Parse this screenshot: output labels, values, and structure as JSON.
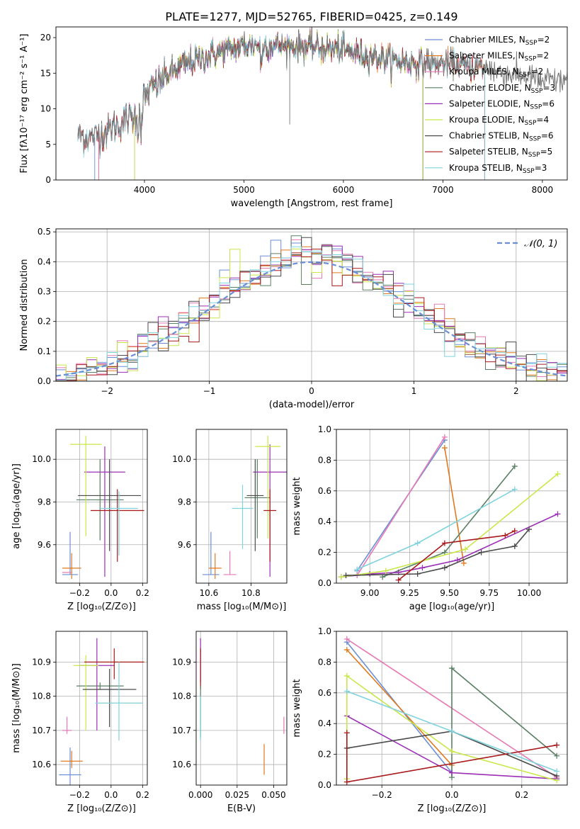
{
  "title": "PLATE=1277, MJD=52765, FIBERID=0425, z=0.149",
  "colors": {
    "chabrier_miles": "#6a8fd6",
    "salpeter_miles": "#e07a1f",
    "kroupa_miles": "#e67ab5",
    "chabrier_elodie": "#5a8063",
    "salpeter_elodie": "#9b2fb5",
    "kroupa_elodie": "#c8e84a",
    "chabrier_stelib": "#4a4a4a",
    "salpeter_stelib": "#a8191b",
    "kroupa_stelib": "#7fd3de"
  },
  "chart_data": [
    {
      "id": "spectrum",
      "type": "line",
      "title": "PLATE=1277, MJD=52765, FIBERID=0425, z=0.149",
      "xlabel": "wavelength [Angstrom, rest frame]",
      "ylabel": "Flux [fλ10⁻¹⁷ erg cm⁻² s⁻¹ A⁻¹]",
      "xlim": [
        3110,
        8250
      ],
      "ylim": [
        0,
        21.5
      ],
      "xticks": [
        4000,
        5000,
        6000,
        7000,
        8000
      ],
      "yticks": [
        0,
        5,
        10,
        15,
        20
      ],
      "grid": false,
      "legend_position": "top-right",
      "legend": [
        {
          "label": "Chabrier MILES, N",
          "sub": "SSP",
          "suffix": "=2",
          "color": "#6a8fd6"
        },
        {
          "label": "Salpeter MILES, N",
          "sub": "SSP",
          "suffix": "=2",
          "color": "#e07a1f"
        },
        {
          "label": "Kroupa MILES, N",
          "sub": "SSP",
          "suffix": "=2",
          "color": "#e67ab5"
        },
        {
          "label": "Chabrier ELODIE, N",
          "sub": "SSP",
          "suffix": "=3",
          "color": "#5a8063"
        },
        {
          "label": "Salpeter ELODIE, N",
          "sub": "SSP",
          "suffix": "=6",
          "color": "#9b2fb5"
        },
        {
          "label": "Kroupa ELODIE, N",
          "sub": "SSP",
          "suffix": "=4",
          "color": "#c8e84a"
        },
        {
          "label": "Chabrier STELIB, N",
          "sub": "SSP",
          "suffix": "=6",
          "color": "#4a4a4a"
        },
        {
          "label": "Salpeter STELIB, N",
          "sub": "SSP",
          "suffix": "=5",
          "color": "#a8191b"
        },
        {
          "label": "Kroupa STELIB, N",
          "sub": "SSP",
          "suffix": "=3",
          "color": "#7fd3de"
        }
      ],
      "continuum": {
        "x": [
          3330,
          3500,
          3700,
          3900,
          4050,
          4200,
          4400,
          4600,
          4800,
          5000,
          5200,
          5400,
          5600,
          5800,
          6000,
          6200,
          6400,
          6600,
          6800,
          7000,
          7200,
          7400,
          7600,
          7800,
          8000
        ],
        "y": [
          6.2,
          6.0,
          7.5,
          9.0,
          12.5,
          14.5,
          16.2,
          17.2,
          18.2,
          18.8,
          19.0,
          18.8,
          18.8,
          18.6,
          18.2,
          17.6,
          17.0,
          16.6,
          16.4,
          16.3,
          16.1,
          15.8,
          15.2,
          14.6,
          14.0
        ]
      },
      "model_ranges": [
        {
          "series": "chabrier_miles",
          "x": [
            3500,
            6800
          ]
        },
        {
          "series": "salpeter_miles",
          "x": [
            3540,
            7420
          ]
        },
        {
          "series": "kroupa_miles",
          "x": [
            3540,
            7420
          ]
        },
        {
          "series": "chabrier_elodie",
          "x": [
            3900,
            6800
          ]
        },
        {
          "series": "salpeter_elodie",
          "x": [
            3900,
            6800
          ]
        },
        {
          "series": "kroupa_elodie",
          "x": [
            3900,
            6800
          ]
        },
        {
          "series": "chabrier_stelib",
          "x": [
            3330,
            8250
          ]
        },
        {
          "series": "salpeter_stelib",
          "x": [
            3330,
            7420
          ]
        },
        {
          "series": "kroupa_stelib",
          "x": [
            3330,
            7420
          ]
        }
      ]
    },
    {
      "id": "residuals",
      "type": "line",
      "xlabel": "(data-model)/error",
      "ylabel": "Normed distribution",
      "xlim": [
        -2.5,
        2.5
      ],
      "ylim": [
        0,
        0.51
      ],
      "xticks": [
        -2,
        -1,
        0,
        1,
        2
      ],
      "xticklabels": [
        "−2",
        "−1",
        "0",
        "1",
        "2"
      ],
      "yticks": [
        0.0,
        0.1,
        0.2,
        0.3,
        0.4,
        0.5
      ],
      "yticklabels": [
        "0.0",
        "0.1",
        "0.2",
        "0.3",
        "0.4",
        "0.5"
      ],
      "grid": true,
      "legend_position": "top-right",
      "normal_label": "𝒩(0, 1)",
      "bin_width": 0.1,
      "histogram_step": "histogram of (data-model)/error for each of the 9 fits, close to a unit normal"
    },
    {
      "id": "age_vs_Z",
      "type": "scatter",
      "xlabel": "Z [log₁₀(Z/Z⊙)]",
      "ylabel": "age  [log₁₀(age/yr)]",
      "xlim": [
        -0.35,
        0.23
      ],
      "ylim": [
        9.42,
        10.14
      ],
      "xticks": [
        -0.2,
        0.0,
        0.2
      ],
      "xticklabels": [
        "−0.2",
        "0.0",
        "0.2"
      ],
      "yticks": [
        9.6,
        9.8,
        10.0
      ],
      "yticklabels": [
        "9.6",
        "9.8",
        "10.0"
      ],
      "grid": true,
      "points": [
        {
          "series": "chabrier_miles",
          "x": -0.26,
          "y": 9.46,
          "xerr": 0.05,
          "yerr": [
            9.46,
            9.66
          ]
        },
        {
          "series": "salpeter_miles",
          "x": -0.25,
          "y": 9.49,
          "xerr": 0.06,
          "yerr": [
            9.44,
            9.56
          ]
        },
        {
          "series": "kroupa_miles",
          "x": -0.28,
          "y": 9.47,
          "xerr": 0.03,
          "yerr": [
            9.47,
            9.47
          ]
        },
        {
          "series": "chabrier_elodie",
          "x": -0.07,
          "y": 9.81,
          "xerr": 0.15,
          "yerr": [
            9.62,
            10.0
          ]
        },
        {
          "series": "salpeter_elodie",
          "x": -0.04,
          "y": 9.94,
          "xerr": 0.13,
          "yerr": [
            9.45,
            10.06
          ]
        },
        {
          "series": "kroupa_elodie",
          "x": -0.16,
          "y": 10.07,
          "xerr": 0.1,
          "yerr": [
            9.64,
            10.11
          ]
        },
        {
          "series": "chabrier_stelib",
          "x": -0.01,
          "y": 9.83,
          "xerr": 0.2,
          "yerr": [
            9.57,
            10.0
          ]
        },
        {
          "series": "salpeter_stelib",
          "x": 0.04,
          "y": 9.76,
          "xerr": 0.17,
          "yerr": [
            9.52,
            9.86
          ]
        },
        {
          "series": "kroupa_stelib",
          "x": 0.05,
          "y": 9.77,
          "xerr": 0.12,
          "yerr": [
            9.55,
            9.85
          ]
        }
      ]
    },
    {
      "id": "age_vs_mass",
      "type": "scatter",
      "xlabel": "mass [log₁₀(M/M⊙)]",
      "ylabel": "",
      "xlim": [
        10.54,
        10.97
      ],
      "ylim": [
        9.42,
        10.14
      ],
      "xticks": [
        10.6,
        10.8
      ],
      "yticks": [
        9.6,
        9.8,
        10.0
      ],
      "yticklabels": [
        "9.6",
        "9.8",
        "10.0"
      ],
      "grid": true,
      "points": [
        {
          "series": "chabrier_miles",
          "x": 10.61,
          "y": 9.46,
          "xerr": 0.04,
          "yerr": [
            9.46,
            9.66
          ]
        },
        {
          "series": "salpeter_miles",
          "x": 10.63,
          "y": 9.49,
          "xerr": 0.03,
          "yerr": [
            9.44,
            9.56
          ]
        },
        {
          "series": "kroupa_miles",
          "x": 10.7,
          "y": 9.46,
          "xerr": 0.03,
          "yerr": [
            9.46,
            9.57
          ]
        },
        {
          "series": "chabrier_elodie",
          "x": 10.83,
          "y": 9.82,
          "xerr": 0.06,
          "yerr": [
            9.63,
            10.0
          ]
        },
        {
          "series": "salpeter_elodie",
          "x": 10.89,
          "y": 9.94,
          "xerr": 0.08,
          "yerr": [
            9.45,
            10.07
          ]
        },
        {
          "series": "kroupa_elodie",
          "x": 10.88,
          "y": 10.06,
          "xerr": 0.06,
          "yerr": [
            9.63,
            10.11
          ]
        },
        {
          "series": "chabrier_stelib",
          "x": 10.82,
          "y": 9.83,
          "xerr": 0.04,
          "yerr": [
            9.57,
            10.0
          ]
        },
        {
          "series": "salpeter_stelib",
          "x": 10.89,
          "y": 9.76,
          "xerr": 0.03,
          "yerr": [
            9.52,
            9.86
          ]
        },
        {
          "series": "kroupa_stelib",
          "x": 10.76,
          "y": 9.77,
          "xerr": 0.05,
          "yerr": [
            9.58,
            9.88
          ]
        }
      ]
    },
    {
      "id": "weight_vs_age",
      "type": "line",
      "xlabel": "age  [log₁₀(age/yr)]",
      "ylabel": "mass weight",
      "xlim": [
        8.79,
        10.24
      ],
      "ylim": [
        0,
        1
      ],
      "xticks": [
        9.0,
        9.25,
        9.5,
        9.75,
        10.0
      ],
      "xticklabels": [
        "9.00",
        "9.25",
        "9.50",
        "9.75",
        "10.00"
      ],
      "yticks": [
        0.0,
        0.2,
        0.4,
        0.6,
        0.8,
        1.0
      ],
      "yticklabels": [
        "0.0",
        "0.2",
        "0.4",
        "0.6",
        "0.8",
        "1.0"
      ],
      "grid": true,
      "series": [
        {
          "name": "chabrier_miles",
          "x": [
            8.92,
            9.47
          ],
          "y": [
            0.08,
            0.93
          ]
        },
        {
          "name": "salpeter_miles",
          "x": [
            9.47,
            9.59
          ],
          "y": [
            0.88,
            0.13
          ]
        },
        {
          "name": "kroupa_miles",
          "x": [
            8.92,
            9.47
          ],
          "y": [
            0.05,
            0.95
          ]
        },
        {
          "name": "chabrier_elodie",
          "x": [
            9.08,
            9.47,
            9.91
          ],
          "y": [
            0.04,
            0.2,
            0.76
          ]
        },
        {
          "name": "salpeter_elodie",
          "x": [
            8.82,
            9.0,
            9.18,
            9.33,
            9.55,
            10.18
          ],
          "y": [
            0.04,
            0.06,
            0.07,
            0.1,
            0.15,
            0.45
          ]
        },
        {
          "name": "kroupa_elodie",
          "x": [
            8.82,
            9.1,
            9.6,
            10.18
          ],
          "y": [
            0.04,
            0.08,
            0.22,
            0.71
          ]
        },
        {
          "name": "chabrier_stelib",
          "x": [
            8.85,
            9.3,
            9.47,
            9.7,
            9.91,
            10.0
          ],
          "y": [
            0.05,
            0.06,
            0.1,
            0.2,
            0.24,
            0.35
          ]
        },
        {
          "name": "salpeter_stelib",
          "x": [
            9.18,
            9.47,
            9.85,
            9.91
          ],
          "y": [
            0.02,
            0.26,
            0.31,
            0.34
          ]
        },
        {
          "name": "kroupa_stelib",
          "x": [
            8.92,
            9.3,
            9.91
          ],
          "y": [
            0.09,
            0.26,
            0.61
          ]
        }
      ]
    },
    {
      "id": "mass_vs_Z",
      "type": "scatter",
      "xlabel": "Z [log₁₀(Z/Z⊙)]",
      "ylabel": "mass [log₁₀(M/M⊙)]",
      "xlim": [
        -0.35,
        0.23
      ],
      "ylim": [
        10.54,
        10.99
      ],
      "xticks": [
        -0.2,
        0.0,
        0.2
      ],
      "xticklabels": [
        "−0.2",
        "0.0",
        "0.2"
      ],
      "yticks": [
        10.6,
        10.7,
        10.8,
        10.9
      ],
      "yticklabels": [
        "10.6",
        "10.7",
        "10.8",
        "10.9"
      ],
      "grid": true,
      "points": [
        {
          "series": "chabrier_miles",
          "x": -0.26,
          "y": 10.57,
          "xerr": 0.07,
          "yerr": [
            10.54,
            10.65
          ]
        },
        {
          "series": "salpeter_miles",
          "x": -0.25,
          "y": 10.61,
          "xerr": 0.07,
          "yerr": [
            10.59,
            10.64
          ]
        },
        {
          "series": "kroupa_miles",
          "x": -0.28,
          "y": 10.7,
          "xerr": 0.03,
          "yerr": [
            10.69,
            10.74
          ]
        },
        {
          "series": "chabrier_elodie",
          "x": -0.07,
          "y": 10.83,
          "xerr": 0.15,
          "yerr": [
            10.82,
            10.84
          ]
        },
        {
          "series": "salpeter_elodie",
          "x": -0.09,
          "y": 10.89,
          "xerr": 0.11,
          "yerr": [
            10.7,
            10.97
          ]
        },
        {
          "series": "kroupa_elodie",
          "x": -0.16,
          "y": 10.89,
          "xerr": 0.08,
          "yerr": [
            10.7,
            10.92
          ]
        },
        {
          "series": "chabrier_stelib",
          "x": -0.01,
          "y": 10.82,
          "xerr": 0.17,
          "yerr": [
            10.71,
            10.88
          ]
        },
        {
          "series": "salpeter_stelib",
          "x": 0.02,
          "y": 10.9,
          "xerr": 0.19,
          "yerr": [
            10.85,
            10.94
          ]
        },
        {
          "series": "kroupa_stelib",
          "x": 0.05,
          "y": 10.78,
          "xerr": 0.15,
          "yerr": [
            10.67,
            10.9
          ]
        }
      ]
    },
    {
      "id": "mass_vs_ebv",
      "type": "scatter",
      "xlabel": "E(B-V)",
      "ylabel": "",
      "xlim": [
        -0.003,
        0.059
      ],
      "ylim": [
        10.54,
        10.99
      ],
      "xticks": [
        0.0,
        0.025,
        0.05
      ],
      "xticklabels": [
        "0.000",
        "0.025",
        "0.050"
      ],
      "yticks": [
        10.6,
        10.7,
        10.8,
        10.9
      ],
      "yticklabels": [
        "10.6",
        "10.7",
        "10.8",
        "10.9"
      ],
      "grid": true,
      "points": [
        {
          "series": "salpeter_elodie",
          "x": 0.0,
          "y": 10.9,
          "yerr": [
            10.84,
            10.97
          ]
        },
        {
          "series": "salpeter_stelib",
          "x": 0.0,
          "y": 10.88,
          "yerr": [
            10.82,
            10.94
          ]
        },
        {
          "series": "chabrier_elodie",
          "x": 0.0,
          "y": 10.8,
          "yerr": [
            10.68,
            10.83
          ]
        },
        {
          "series": "kroupa_stelib",
          "x": 0.0,
          "y": 10.76,
          "yerr": [
            10.67,
            10.8
          ]
        },
        {
          "series": "salpeter_miles",
          "x": 0.0435,
          "y": 10.61,
          "yerr": [
            10.57,
            10.66
          ]
        },
        {
          "series": "kroupa_miles",
          "x": 0.057,
          "y": 10.71,
          "yerr": [
            10.69,
            10.74
          ]
        }
      ]
    },
    {
      "id": "weight_vs_Z",
      "type": "line",
      "xlabel": "Z [log₁₀(Z/Z⊙)]",
      "ylabel": "mass weight",
      "xlim": [
        -0.33,
        0.33
      ],
      "ylim": [
        0,
        1
      ],
      "xticks": [
        -0.2,
        0.0,
        0.2
      ],
      "xticklabels": [
        "−0.2",
        "0.0",
        "0.2"
      ],
      "yticks": [
        0.0,
        0.2,
        0.4,
        0.6,
        0.8,
        1.0
      ],
      "yticklabels": [
        "0.0",
        "0.2",
        "0.4",
        "0.6",
        "0.8",
        "1.0"
      ],
      "grid": true,
      "series": [
        {
          "name": "chabrier_miles",
          "x": [
            -0.3,
            0.0
          ],
          "y": [
            0.93,
            0.08
          ]
        },
        {
          "name": "salpeter_miles",
          "x": [
            -0.3,
            0.0
          ],
          "y": [
            0.88,
            0.13
          ]
        },
        {
          "name": "kroupa_miles",
          "x": [
            -0.3,
            0.3
          ],
          "y": [
            0.95,
            0.05
          ]
        },
        {
          "name": "chabrier_elodie",
          "x": [
            0.0,
            0.0,
            0.3
          ],
          "y": [
            0.05,
            0.76,
            0.19
          ]
        },
        {
          "name": "salpeter_elodie",
          "x": [
            -0.3,
            0.0,
            0.3
          ],
          "y": [
            0.45,
            0.08,
            0.04
          ]
        },
        {
          "name": "kroupa_elodie",
          "x": [
            -0.3,
            -0.3,
            0.0,
            0.3
          ],
          "y": [
            0.04,
            0.71,
            0.22,
            0.03
          ]
        },
        {
          "name": "chabrier_stelib",
          "x": [
            -0.3,
            0.0,
            0.3
          ],
          "y": [
            0.24,
            0.35,
            0.06
          ]
        },
        {
          "name": "salpeter_stelib",
          "x": [
            -0.3,
            -0.3,
            0.3
          ],
          "y": [
            0.34,
            0.02,
            0.26
          ]
        },
        {
          "name": "kroupa_stelib",
          "x": [
            -0.3,
            0.0,
            0.3
          ],
          "y": [
            0.61,
            0.35,
            0.09
          ]
        }
      ]
    }
  ]
}
